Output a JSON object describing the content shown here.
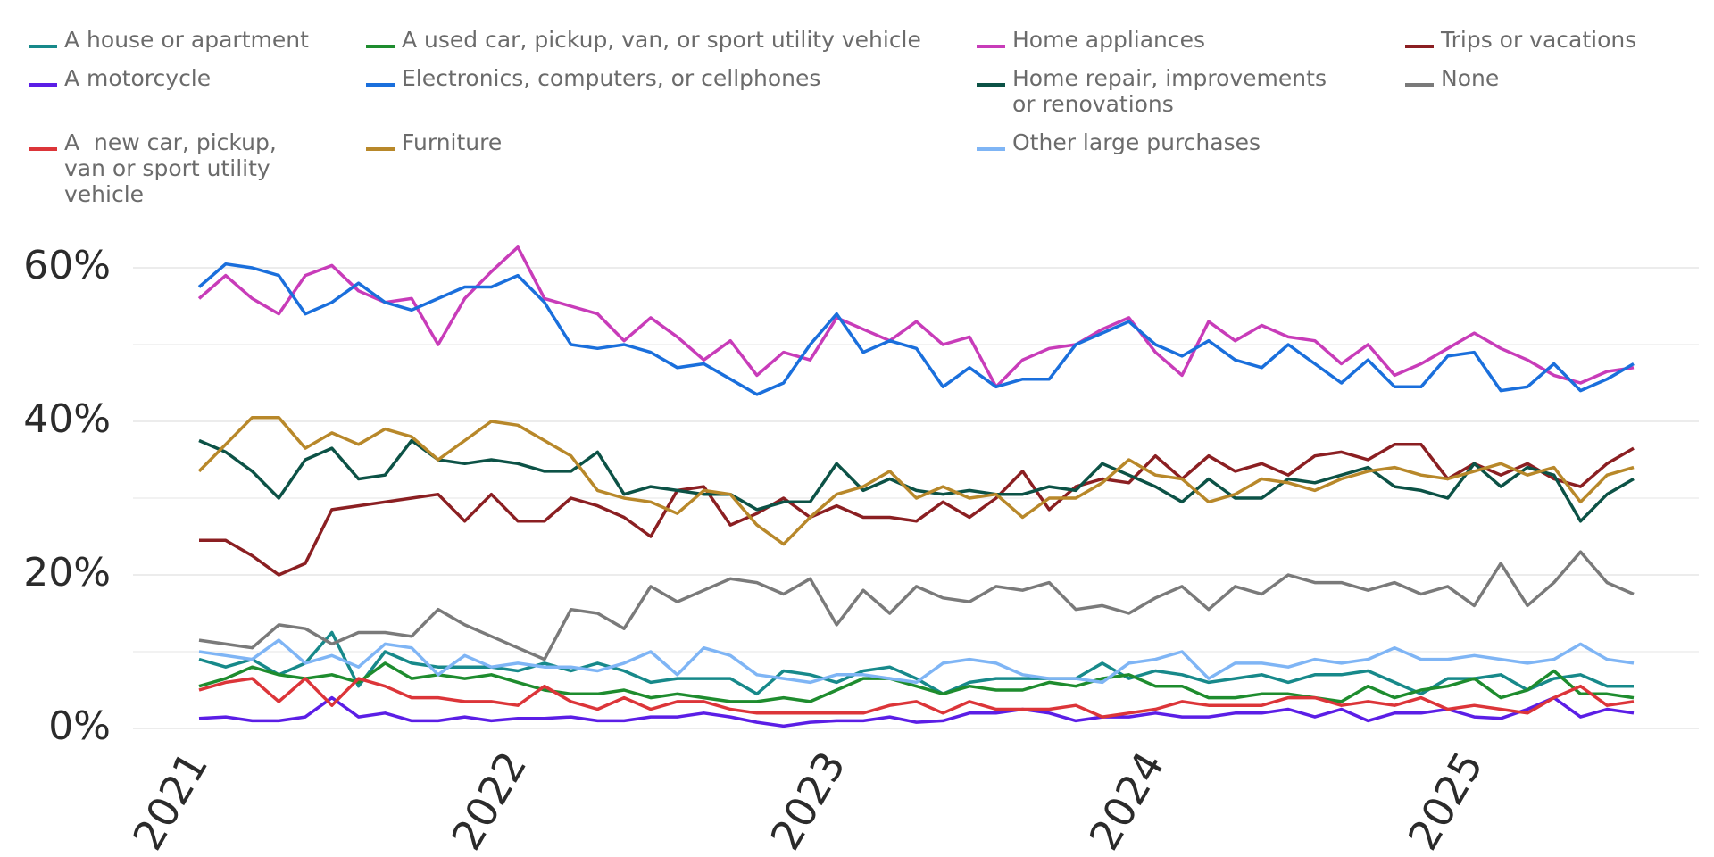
{
  "chart_data": {
    "type": "line",
    "categories": [
      "2021",
      null,
      null,
      null,
      null,
      null,
      null,
      null,
      null,
      null,
      null,
      null,
      "2022",
      null,
      null,
      null,
      null,
      null,
      null,
      null,
      null,
      null,
      null,
      null,
      "2023",
      null,
      null,
      null,
      null,
      null,
      null,
      null,
      null,
      null,
      null,
      null,
      "2024",
      null,
      null,
      null,
      null,
      null,
      null,
      null,
      null,
      null,
      null,
      null,
      "2025",
      null,
      null,
      null,
      null,
      null,
      null
    ],
    "ylim": [
      0,
      65
    ],
    "yticks": [
      {
        "value": 0,
        "label": "0%"
      },
      {
        "value": 20,
        "label": "20%"
      },
      {
        "value": 40,
        "label": "40%"
      },
      {
        "value": 60,
        "label": "60%"
      }
    ],
    "minor_yticks": [
      10,
      30,
      50
    ],
    "grid": true,
    "series": [
      {
        "name": "A house or apartment",
        "color": "#17898a",
        "values": [
          9,
          8,
          9,
          7,
          8.5,
          12.5,
          5.5,
          10,
          8.5,
          8,
          8,
          8,
          7.5,
          8.5,
          7.5,
          8.5,
          7.5,
          6,
          6.5,
          6.5,
          6.5,
          4.5,
          7.5,
          7,
          6,
          7.5,
          8,
          6.5,
          4.5,
          6,
          6.5,
          6.5,
          6.5,
          6.5,
          8.5,
          6.5,
          7.5,
          7,
          6,
          6.5,
          7,
          6,
          7,
          7,
          7.5,
          6,
          4.5,
          6.5,
          6.5,
          7,
          5,
          6.5,
          7,
          5.5,
          5.5
        ]
      },
      {
        "name": "A used car, pickup, van, or sport utility vehicle",
        "color": "#1e8c2e",
        "values": [
          5.5,
          6.5,
          8,
          7,
          6.5,
          7,
          6,
          8.5,
          6.5,
          7,
          6.5,
          7,
          6,
          5,
          4.5,
          4.5,
          5,
          4,
          4.5,
          4,
          3.5,
          3.5,
          4,
          3.5,
          5,
          6.5,
          6.5,
          5.5,
          4.5,
          5.5,
          5,
          5,
          6,
          5.5,
          6.5,
          7,
          5.5,
          5.5,
          4,
          4,
          4.5,
          4.5,
          4,
          3.5,
          5.5,
          4,
          5,
          5.5,
          6.5,
          4,
          5,
          7.5,
          4.5,
          4.5,
          4
        ]
      },
      {
        "name": "Home appliances",
        "color": "#c83cb9",
        "values": [
          56,
          59,
          56,
          54,
          59,
          60.3,
          57,
          55.5,
          56,
          50,
          56,
          59.5,
          62.7,
          56,
          55,
          54,
          50.5,
          53.5,
          51,
          48,
          50.5,
          46,
          49,
          48,
          53.5,
          52,
          50.5,
          53,
          50,
          51,
          44.5,
          48,
          49.5,
          50,
          52,
          53.5,
          49,
          46,
          53,
          50.5,
          52.5,
          51,
          50.5,
          47.5,
          50,
          46,
          47.5,
          49.5,
          51.5,
          49.5,
          48,
          46,
          45,
          46.5,
          47
        ]
      },
      {
        "name": "Trips or vacations",
        "color": "#8b1f22",
        "values": [
          24.5,
          24.5,
          22.5,
          20,
          21.5,
          28.5,
          29,
          29.5,
          30,
          30.5,
          27,
          30.5,
          27,
          27,
          30,
          29,
          27.5,
          25,
          31,
          31.5,
          26.5,
          28,
          30,
          27.5,
          29,
          27.5,
          27.5,
          27,
          29.5,
          27.5,
          30,
          33.5,
          28.5,
          31.5,
          32.5,
          32,
          35.5,
          32.5,
          35.5,
          33.5,
          34.5,
          33,
          35.5,
          36,
          35,
          37,
          37,
          32.5,
          34.5,
          33,
          34.5,
          32.5,
          31.5,
          34.5,
          36.5
        ]
      },
      {
        "name": "A motorcycle",
        "color": "#5b1ee6",
        "values": [
          1.3,
          1.5,
          1,
          1,
          1.5,
          4,
          1.5,
          2,
          1,
          1,
          1.5,
          1,
          1.3,
          1.3,
          1.5,
          1,
          1,
          1.5,
          1.5,
          2,
          1.5,
          0.8,
          0.3,
          0.8,
          1,
          1,
          1.5,
          0.8,
          1,
          2,
          2,
          2.5,
          2,
          1,
          1.5,
          1.5,
          2,
          1.5,
          1.5,
          2,
          2,
          2.5,
          1.5,
          2.5,
          1,
          2,
          2,
          2.5,
          1.5,
          1.3,
          2.5,
          4,
          1.5,
          2.5,
          2
        ]
      },
      {
        "name": "Electronics, computers, or cellphones",
        "color": "#1a6fdc",
        "values": [
          57.5,
          60.5,
          60,
          59,
          54,
          55.5,
          58,
          55.5,
          54.5,
          56,
          57.5,
          57.5,
          59,
          55.5,
          50,
          49.5,
          50,
          49,
          47,
          47.5,
          45.5,
          43.5,
          45,
          50,
          54,
          49,
          50.5,
          49.5,
          44.5,
          47,
          44.5,
          45.5,
          45.5,
          50,
          51.5,
          53,
          50,
          48.5,
          50.5,
          48,
          47,
          50,
          47.5,
          45,
          48,
          44.5,
          44.5,
          48.5,
          49,
          44,
          44.5,
          47.5,
          44,
          45.5,
          47.5
        ]
      },
      {
        "name": "Home repair, improvements or renovations",
        "color": "#0c5246",
        "values": [
          37.5,
          36,
          33.5,
          30,
          35,
          36.5,
          32.5,
          33,
          37.5,
          35,
          34.5,
          35,
          34.5,
          33.5,
          33.5,
          36,
          30.5,
          31.5,
          31,
          30.5,
          30.5,
          28.5,
          29.5,
          29.5,
          34.5,
          31,
          32.5,
          31,
          30.5,
          31,
          30.5,
          30.5,
          31.5,
          31,
          34.5,
          33,
          31.5,
          29.5,
          32.5,
          30,
          30,
          32.5,
          32,
          33,
          34,
          31.5,
          31,
          30,
          34.5,
          31.5,
          34,
          33,
          27,
          30.5,
          32.5
        ]
      },
      {
        "name": "None",
        "color": "#7a7a7a",
        "values": [
          11.5,
          11,
          10.5,
          13.5,
          13,
          11,
          12.5,
          12.5,
          12,
          15.5,
          13.5,
          12,
          10.5,
          9,
          15.5,
          15,
          13,
          18.5,
          16.5,
          18,
          19.5,
          19,
          17.5,
          19.5,
          13.5,
          18,
          15,
          18.5,
          17,
          16.5,
          18.5,
          18,
          19,
          15.5,
          16,
          15,
          17,
          18.5,
          15.5,
          18.5,
          17.5,
          20,
          19,
          19,
          18,
          19,
          17.5,
          18.5,
          16,
          21.5,
          16,
          19,
          23,
          19,
          17.5
        ]
      },
      {
        "name": "A  new car, pickup, van or sport utility vehicle",
        "color": "#dc3539",
        "values": [
          5,
          6,
          6.5,
          3.5,
          6.5,
          3,
          6.5,
          5.5,
          4,
          4,
          3.5,
          3.5,
          3,
          5.5,
          3.5,
          2.5,
          4,
          2.5,
          3.5,
          3.5,
          2.5,
          2,
          2,
          2,
          2,
          2,
          3,
          3.5,
          2,
          3.5,
          2.5,
          2.5,
          2.5,
          3,
          1.5,
          2,
          2.5,
          3.5,
          3,
          3,
          3,
          4,
          4,
          3,
          3.5,
          3,
          4,
          2.5,
          3,
          2.5,
          2,
          4,
          5.5,
          3,
          3.5
        ]
      },
      {
        "name": "Furniture",
        "color": "#b8882a",
        "values": [
          33.5,
          37,
          40.5,
          40.5,
          36.5,
          38.5,
          37,
          39,
          38,
          35,
          37.5,
          40,
          39.5,
          37.5,
          35.5,
          31,
          30,
          29.5,
          28,
          31,
          30.5,
          26.5,
          24,
          27.5,
          30.5,
          31.5,
          33.5,
          30,
          31.5,
          30,
          30.5,
          27.5,
          30,
          30,
          32,
          35,
          33,
          32.5,
          29.5,
          30.5,
          32.5,
          32,
          31,
          32.5,
          33.5,
          34,
          33,
          32.5,
          33.5,
          34.5,
          33,
          34,
          29.5,
          33,
          34
        ]
      },
      {
        "name": "Other large purchases",
        "color": "#7fb5f5",
        "values": [
          10,
          9.5,
          9,
          11.5,
          8.5,
          9.5,
          8,
          11,
          10.5,
          7,
          9.5,
          8,
          8.5,
          8,
          8,
          7.5,
          8.5,
          10,
          7,
          10.5,
          9.5,
          7,
          6.5,
          6,
          7,
          7,
          6.5,
          6,
          8.5,
          9,
          8.5,
          7,
          6.5,
          6.5,
          6,
          8.5,
          9,
          10,
          6.5,
          8.5,
          8.5,
          8,
          9,
          8.5,
          9,
          10.5,
          9,
          9,
          9.5,
          9,
          8.5,
          9,
          11,
          9,
          8.5
        ]
      }
    ]
  }
}
